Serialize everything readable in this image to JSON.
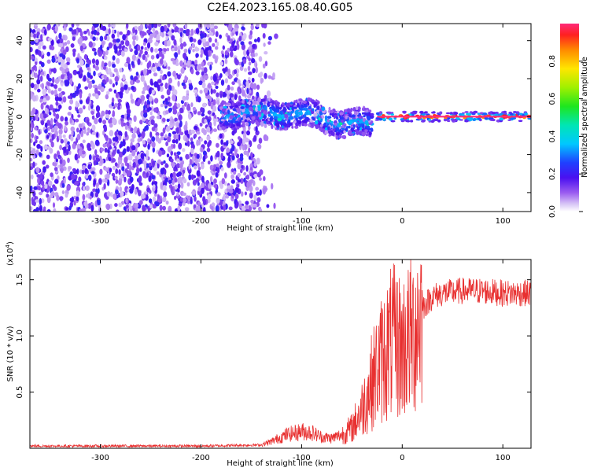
{
  "title": "C2E4.2023.165.08.40.G05",
  "chart_data": [
    {
      "type": "heatmap",
      "xlabel": "Height of straight line (km)",
      "ylabel": "Frequency (Hz)",
      "xlim": [
        -370,
        128
      ],
      "ylim": [
        -50,
        49
      ],
      "xticks": [
        -300,
        -200,
        -100,
        0,
        100
      ],
      "xtick_labels": [
        "-300",
        "-200",
        "-100",
        "0",
        "100"
      ],
      "yticks": [
        -40,
        -20,
        0,
        20,
        40
      ],
      "ytick_labels": [
        "-40",
        "-20",
        "0",
        "20",
        "40"
      ],
      "colorbar": {
        "label": "Normalized spectral amplitude",
        "range": [
          0,
          1
        ],
        "ticks": [
          0.0,
          0.2,
          0.4,
          0.6,
          0.8
        ],
        "tick_labels": [
          "0.0",
          "0.2",
          "0.4",
          "0.6",
          "0.8"
        ],
        "colormap": "rainbow-white"
      },
      "features": [
        {
          "region": "noise",
          "x_range": [
            -370,
            -150
          ],
          "freq_range": [
            -50,
            49
          ],
          "amplitude": 0.1
        },
        {
          "region": "wandering signal",
          "x_range": [
            -180,
            -30
          ],
          "freq": 2,
          "amplitude": 0.35
        },
        {
          "region": "steady tone",
          "x_range": [
            -25,
            128
          ],
          "freq": 0,
          "amplitude": 1.0
        }
      ]
    },
    {
      "type": "line",
      "xlabel": "Height of straight line (km)",
      "ylabel": "SNR (10 * v/v)",
      "yscale_label": "(x10",
      "yscale_exp": "4",
      "yscale_close": ")",
      "xlim": [
        -370,
        128
      ],
      "ylim": [
        0,
        1.68
      ],
      "xticks": [
        -300,
        -200,
        -100,
        0,
        100
      ],
      "xtick_labels": [
        "-300",
        "-200",
        "-100",
        "0",
        "100"
      ],
      "yticks": [
        0.5,
        1.0,
        1.5
      ],
      "ytick_labels": [
        "0.5",
        "1.0",
        "1.5"
      ],
      "color": "#e83030",
      "series": [
        {
          "x": [
            -370,
            -300,
            -200,
            -140,
            -130,
            -115,
            -100,
            -90,
            -80,
            -70,
            -60,
            -50,
            -40,
            -30,
            -20,
            -10,
            0,
            10,
            20,
            30,
            40,
            60,
            80,
            100,
            128
          ],
          "y": [
            0.02,
            0.02,
            0.02,
            0.03,
            0.06,
            0.12,
            0.15,
            0.14,
            0.1,
            0.09,
            0.12,
            0.18,
            0.35,
            0.6,
            0.8,
            0.95,
            0.9,
            1.0,
            1.25,
            1.35,
            1.38,
            1.4,
            1.4,
            1.38,
            1.38
          ]
        }
      ]
    }
  ]
}
